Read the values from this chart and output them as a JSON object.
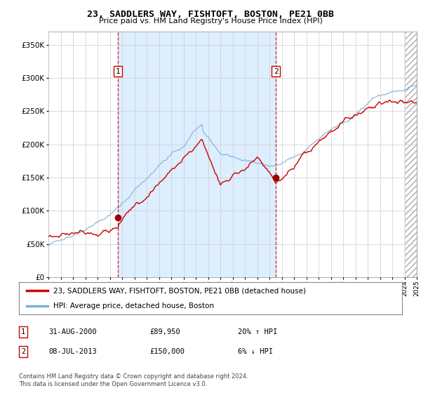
{
  "title": "23, SADDLERS WAY, FISHTOFT, BOSTON, PE21 0BB",
  "subtitle": "Price paid vs. HM Land Registry's House Price Index (HPI)",
  "legend_line1": "23, SADDLERS WAY, FISHTOFT, BOSTON, PE21 0BB (detached house)",
  "legend_line2": "HPI: Average price, detached house, Boston",
  "footnote1": "Contains HM Land Registry data © Crown copyright and database right 2024.",
  "footnote2": "This data is licensed under the Open Government Licence v3.0.",
  "table_rows": [
    {
      "num": "1",
      "date": "31-AUG-2000",
      "price": "£89,950",
      "hpi": "20% ↑ HPI"
    },
    {
      "num": "2",
      "date": "08-JUL-2013",
      "price": "£150,000",
      "hpi": "6% ↓ HPI"
    }
  ],
  "marker1_year": 2000.67,
  "marker2_year": 2013.52,
  "price_color": "#cc0000",
  "hpi_color": "#7fb3d3",
  "shade_color": "#ddeeff",
  "marker_color": "#990000",
  "background_color": "#ffffff",
  "grid_color": "#cccccc",
  "ylim": [
    0,
    370000
  ],
  "yticks": [
    0,
    50000,
    100000,
    150000,
    200000,
    250000,
    300000,
    350000
  ],
  "ytick_labels": [
    "£0",
    "£50K",
    "£100K",
    "£150K",
    "£200K",
    "£250K",
    "£300K",
    "£350K"
  ],
  "year_start": 1995,
  "year_end": 2025
}
